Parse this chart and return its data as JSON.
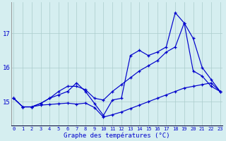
{
  "x_hours": [
    0,
    1,
    2,
    3,
    4,
    5,
    6,
    7,
    8,
    9,
    10,
    11,
    12,
    13,
    14,
    15,
    16,
    17,
    18,
    19,
    20,
    21,
    22,
    23
  ],
  "line_jagged": [
    15.1,
    14.85,
    14.85,
    14.95,
    15.1,
    15.2,
    15.3,
    15.55,
    15.3,
    14.95,
    14.6,
    15.05,
    15.1,
    16.35,
    16.5,
    16.35,
    16.45,
    16.6,
    17.6,
    17.3,
    15.9,
    15.75,
    15.45,
    15.3
  ],
  "line_upper": [
    15.1,
    14.85,
    14.85,
    14.95,
    15.1,
    15.3,
    15.45,
    15.45,
    15.35,
    15.1,
    15.05,
    15.3,
    15.5,
    15.7,
    15.9,
    16.05,
    16.2,
    16.45,
    16.6,
    17.3,
    16.85,
    16.0,
    15.65,
    15.3
  ],
  "line_low": [
    15.1,
    14.85,
    14.85,
    14.9,
    14.92,
    14.94,
    14.96,
    14.93,
    14.96,
    14.83,
    14.55,
    14.62,
    14.7,
    14.8,
    14.9,
    15.0,
    15.1,
    15.2,
    15.3,
    15.4,
    15.45,
    15.5,
    15.55,
    15.3
  ],
  "xlabel": "Graphe des températures (°C)",
  "yticks": [
    15,
    16,
    17
  ],
  "xticks": [
    0,
    1,
    2,
    3,
    4,
    5,
    6,
    7,
    8,
    9,
    10,
    11,
    12,
    13,
    14,
    15,
    16,
    17,
    18,
    19,
    20,
    21,
    22,
    23
  ],
  "ylim": [
    14.3,
    17.9
  ],
  "xlim": [
    -0.3,
    23.3
  ],
  "line_color": "#0000cc",
  "bg_color": "#d5eef0",
  "grid_color": "#aacccc"
}
